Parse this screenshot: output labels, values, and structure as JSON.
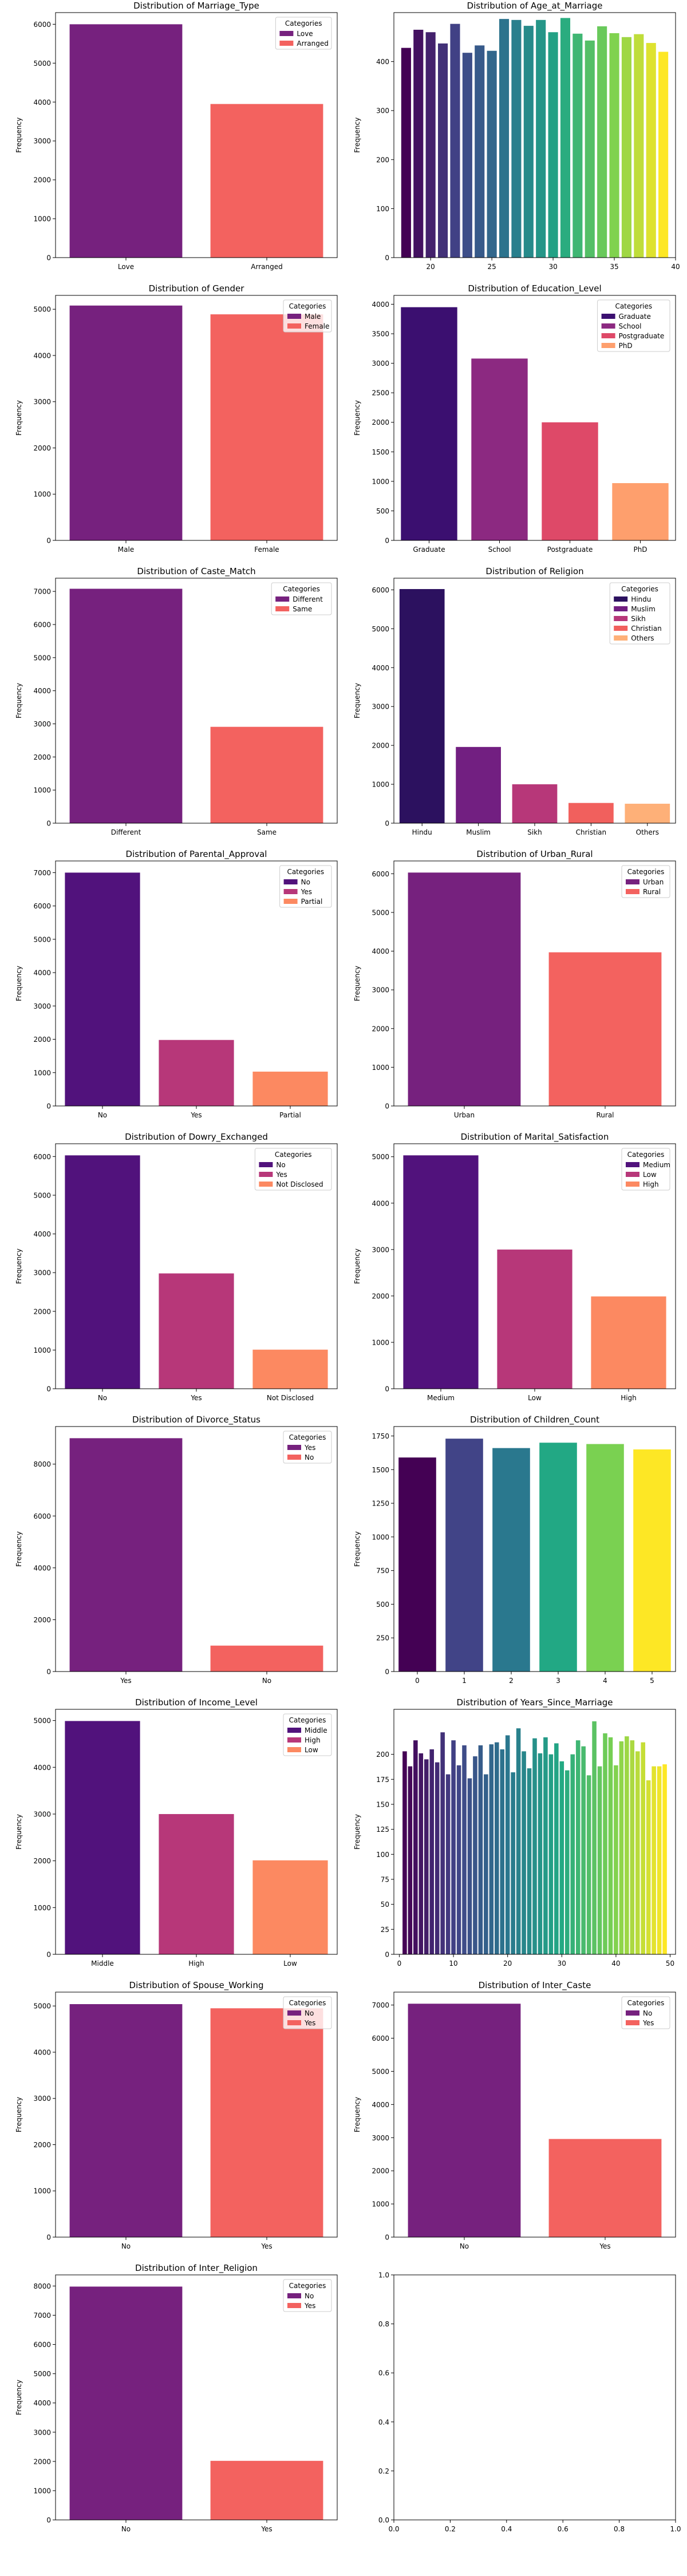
{
  "figure": {
    "columns": 2,
    "rows": 9
  },
  "chart_data": [
    {
      "type": "bar",
      "title": "Distribution of Marriage_Type",
      "xlabel": "",
      "ylabel": "Frequency",
      "categories": [
        "Love",
        "Arranged"
      ],
      "values": [
        6000,
        3950
      ],
      "colors": [
        "#76217e",
        "#f3625f"
      ],
      "ylim": [
        0,
        6300
      ],
      "yticks": [
        0,
        1000,
        2000,
        3000,
        4000,
        5000,
        6000
      ],
      "legend": {
        "title": "Categories",
        "position": "top-right",
        "items": [
          "Love",
          "Arranged"
        ]
      }
    },
    {
      "type": "bar",
      "title": "Distribution of Age_at_Marriage",
      "xlabel": "",
      "ylabel": "Frequency",
      "x": [
        18,
        19,
        20,
        21,
        22,
        23,
        24,
        25,
        26,
        27,
        28,
        29,
        30,
        31,
        32,
        33,
        34,
        35,
        36,
        37,
        38,
        39
      ],
      "values": [
        428,
        465,
        460,
        437,
        477,
        418,
        433,
        422,
        487,
        485,
        473,
        485,
        460,
        489,
        457,
        443,
        472,
        458,
        450,
        456,
        438,
        420
      ],
      "ylim": [
        0,
        500
      ],
      "yticks": [
        0,
        100,
        200,
        300,
        400
      ],
      "xlim": [
        17,
        40
      ],
      "xticks": [
        20,
        25,
        30,
        35,
        40
      ],
      "colormap": "viridis",
      "legend": null
    },
    {
      "type": "bar",
      "title": "Distribution of Gender",
      "xlabel": "",
      "ylabel": "Frequency",
      "categories": [
        "Male",
        "Female"
      ],
      "values": [
        5080,
        4890
      ],
      "colors": [
        "#76217e",
        "#f3625f"
      ],
      "ylim": [
        0,
        5300
      ],
      "yticks": [
        0,
        1000,
        2000,
        3000,
        4000,
        5000
      ],
      "legend": {
        "title": "Categories",
        "position": "top-right",
        "items": [
          "Male",
          "Female"
        ]
      }
    },
    {
      "type": "bar",
      "title": "Distribution of Education_Level",
      "xlabel": "",
      "ylabel": "Frequency",
      "categories": [
        "Graduate",
        "School",
        "Postgraduate",
        "PhD"
      ],
      "values": [
        3950,
        3080,
        2000,
        970
      ],
      "colors": [
        "#3b0f70",
        "#8c2981",
        "#de4968",
        "#fe9f6d"
      ],
      "ylim": [
        0,
        4150
      ],
      "yticks": [
        0,
        500,
        1000,
        1500,
        2000,
        2500,
        3000,
        3500,
        4000
      ],
      "legend": {
        "title": "Categories",
        "position": "top-right",
        "items": [
          "Graduate",
          "School",
          "Postgraduate",
          "PhD"
        ]
      }
    },
    {
      "type": "bar",
      "title": "Distribution of Caste_Match",
      "xlabel": "",
      "ylabel": "Frequency",
      "categories": [
        "Different",
        "Same"
      ],
      "values": [
        7080,
        2910
      ],
      "colors": [
        "#76217e",
        "#f3625f"
      ],
      "ylim": [
        0,
        7400
      ],
      "yticks": [
        0,
        1000,
        2000,
        3000,
        4000,
        5000,
        6000,
        7000
      ],
      "legend": {
        "title": "Categories",
        "position": "top-right",
        "items": [
          "Different",
          "Same"
        ]
      }
    },
    {
      "type": "bar",
      "title": "Distribution of Religion",
      "xlabel": "",
      "ylabel": "Frequency",
      "categories": [
        "Hindu",
        "Muslim",
        "Sikh",
        "Christian",
        "Others"
      ],
      "values": [
        6020,
        1960,
        1000,
        520,
        500
      ],
      "colors": [
        "#2c115f",
        "#721f81",
        "#b73779",
        "#f1605d",
        "#feb078"
      ],
      "ylim": [
        0,
        6300
      ],
      "yticks": [
        0,
        1000,
        2000,
        3000,
        4000,
        5000,
        6000
      ],
      "legend": {
        "title": "Categories",
        "position": "top-right",
        "items": [
          "Hindu",
          "Muslim",
          "Sikh",
          "Christian",
          "Others"
        ]
      }
    },
    {
      "type": "bar",
      "title": "Distribution of Parental_Approval",
      "xlabel": "",
      "ylabel": "Frequency",
      "categories": [
        "No",
        "Yes",
        "Partial"
      ],
      "values": [
        7000,
        1980,
        1030
      ],
      "colors": [
        "#51127c",
        "#b73779",
        "#fc8961"
      ],
      "ylim": [
        0,
        7350
      ],
      "yticks": [
        0,
        1000,
        2000,
        3000,
        4000,
        5000,
        6000,
        7000
      ],
      "legend": {
        "title": "Categories",
        "position": "top-right",
        "items": [
          "No",
          "Yes",
          "Partial"
        ]
      }
    },
    {
      "type": "bar",
      "title": "Distribution of Urban_Rural",
      "xlabel": "",
      "ylabel": "Frequency",
      "categories": [
        "Urban",
        "Rural"
      ],
      "values": [
        6030,
        3970
      ],
      "colors": [
        "#76217e",
        "#f3625f"
      ],
      "ylim": [
        0,
        6330
      ],
      "yticks": [
        0,
        1000,
        2000,
        3000,
        4000,
        5000,
        6000
      ],
      "legend": {
        "title": "Categories",
        "position": "top-right",
        "items": [
          "Urban",
          "Rural"
        ]
      }
    },
    {
      "type": "bar",
      "title": "Distribution of Dowry_Exchanged",
      "xlabel": "",
      "ylabel": "Frequency",
      "categories": [
        "No",
        "Yes",
        "Not Disclosed"
      ],
      "values": [
        6030,
        2980,
        1010
      ],
      "colors": [
        "#51127c",
        "#b73779",
        "#fc8961"
      ],
      "ylim": [
        0,
        6330
      ],
      "yticks": [
        0,
        1000,
        2000,
        3000,
        4000,
        5000,
        6000
      ],
      "legend": {
        "title": "Categories",
        "position": "top-right",
        "items": [
          "No",
          "Yes",
          "Not Disclosed"
        ]
      }
    },
    {
      "type": "bar",
      "title": "Distribution of Marital_Satisfaction",
      "xlabel": "",
      "ylabel": "Frequency",
      "categories": [
        "Medium",
        "Low",
        "High"
      ],
      "values": [
        5030,
        3000,
        1990
      ],
      "colors": [
        "#51127c",
        "#b73779",
        "#fc8961"
      ],
      "ylim": [
        0,
        5280
      ],
      "yticks": [
        0,
        1000,
        2000,
        3000,
        4000,
        5000
      ],
      "legend": {
        "title": "Categories",
        "position": "top-right",
        "items": [
          "Medium",
          "Low",
          "High"
        ]
      }
    },
    {
      "type": "bar",
      "title": "Distribution of Divorce_Status",
      "xlabel": "",
      "ylabel": "Frequency",
      "categories": [
        "Yes",
        "No"
      ],
      "values": [
        9000,
        1000
      ],
      "colors": [
        "#76217e",
        "#f3625f"
      ],
      "ylim": [
        0,
        9450
      ],
      "yticks": [
        0,
        2000,
        4000,
        6000,
        8000
      ],
      "legend": {
        "title": "Categories",
        "position": "top-right",
        "items": [
          "Yes",
          "No"
        ]
      }
    },
    {
      "type": "bar",
      "title": "Distribution of Children_Count",
      "xlabel": "",
      "ylabel": "Frequency",
      "categories": [
        "0",
        "1",
        "2",
        "3",
        "4",
        "5"
      ],
      "values": [
        1590,
        1730,
        1660,
        1700,
        1690,
        1650
      ],
      "colors": [
        "#440154",
        "#414487",
        "#2a788e",
        "#22a884",
        "#7ad151",
        "#fde725"
      ],
      "ylim": [
        0,
        1820
      ],
      "yticks": [
        0,
        250,
        500,
        750,
        1000,
        1250,
        1500,
        1750
      ],
      "legend": null
    },
    {
      "type": "bar",
      "title": "Distribution of Income_Level",
      "xlabel": "",
      "ylabel": "Frequency",
      "categories": [
        "Middle",
        "High",
        "Low"
      ],
      "values": [
        4990,
        3000,
        2010
      ],
      "colors": [
        "#51127c",
        "#b73779",
        "#fc8961"
      ],
      "ylim": [
        0,
        5240
      ],
      "yticks": [
        0,
        1000,
        2000,
        3000,
        4000,
        5000
      ],
      "legend": {
        "title": "Categories",
        "position": "top-right",
        "items": [
          "Middle",
          "High",
          "Low"
        ]
      }
    },
    {
      "type": "bar",
      "title": "Distribution of Years_Since_Marriage",
      "xlabel": "",
      "ylabel": "Frequency",
      "x": [
        1,
        2,
        3,
        4,
        5,
        6,
        7,
        8,
        9,
        10,
        11,
        12,
        13,
        14,
        15,
        16,
        17,
        18,
        19,
        20,
        21,
        22,
        23,
        24,
        25,
        26,
        27,
        28,
        29,
        30,
        31,
        32,
        33,
        34,
        35,
        36,
        37,
        38,
        39,
        40,
        41,
        42,
        43,
        44,
        45,
        46,
        47,
        48,
        49
      ],
      "values": [
        203,
        188,
        214,
        201,
        195,
        205,
        192,
        222,
        180,
        214,
        189,
        209,
        176,
        198,
        209,
        180,
        210,
        212,
        205,
        219,
        182,
        226,
        203,
        186,
        216,
        201,
        217,
        200,
        211,
        193,
        184,
        200,
        214,
        208,
        179,
        233,
        188,
        221,
        217,
        189,
        213,
        218,
        214,
        203,
        212,
        174,
        188,
        188,
        190
      ],
      "ylim": [
        0,
        245
      ],
      "yticks": [
        0,
        25,
        50,
        75,
        100,
        125,
        150,
        175,
        200
      ],
      "xlim": [
        -1,
        51
      ],
      "xticks": [
        0,
        10,
        20,
        30,
        40,
        50
      ],
      "colormap": "viridis",
      "legend": null
    },
    {
      "type": "bar",
      "title": "Distribution of Spouse_Working",
      "xlabel": "",
      "ylabel": "Frequency",
      "categories": [
        "No",
        "Yes"
      ],
      "values": [
        5040,
        4950
      ],
      "colors": [
        "#76217e",
        "#f3625f"
      ],
      "ylim": [
        0,
        5300
      ],
      "yticks": [
        0,
        1000,
        2000,
        3000,
        4000,
        5000
      ],
      "legend": {
        "title": "Categories",
        "position": "top-right",
        "items": [
          "No",
          "Yes"
        ]
      }
    },
    {
      "type": "bar",
      "title": "Distribution of Inter_Caste",
      "xlabel": "",
      "ylabel": "Frequency",
      "categories": [
        "No",
        "Yes"
      ],
      "values": [
        7040,
        2960
      ],
      "colors": [
        "#76217e",
        "#f3625f"
      ],
      "ylim": [
        0,
        7390
      ],
      "yticks": [
        0,
        1000,
        2000,
        3000,
        4000,
        5000,
        6000,
        7000
      ],
      "legend": {
        "title": "Categories",
        "position": "top-right",
        "items": [
          "No",
          "Yes"
        ]
      }
    },
    {
      "type": "bar",
      "title": "Distribution of Inter_Religion",
      "xlabel": "",
      "ylabel": "Frequency",
      "categories": [
        "No",
        "Yes"
      ],
      "values": [
        7980,
        2020
      ],
      "colors": [
        "#76217e",
        "#f3625f"
      ],
      "ylim": [
        0,
        8380
      ],
      "yticks": [
        0,
        1000,
        2000,
        3000,
        4000,
        5000,
        6000,
        7000,
        8000
      ],
      "legend": {
        "title": "Categories",
        "position": "top-right",
        "items": [
          "No",
          "Yes"
        ]
      }
    },
    {
      "type": "empty",
      "title": "",
      "xlabel": "",
      "ylabel": "",
      "xlim": [
        0,
        1
      ],
      "ylim": [
        0,
        1
      ],
      "xticks": [
        "0.0",
        "0.2",
        "0.4",
        "0.6",
        "0.8",
        "1.0"
      ],
      "yticks": [
        "0.0",
        "0.2",
        "0.4",
        "0.6",
        "0.8",
        "1.0"
      ],
      "legend": null
    }
  ]
}
